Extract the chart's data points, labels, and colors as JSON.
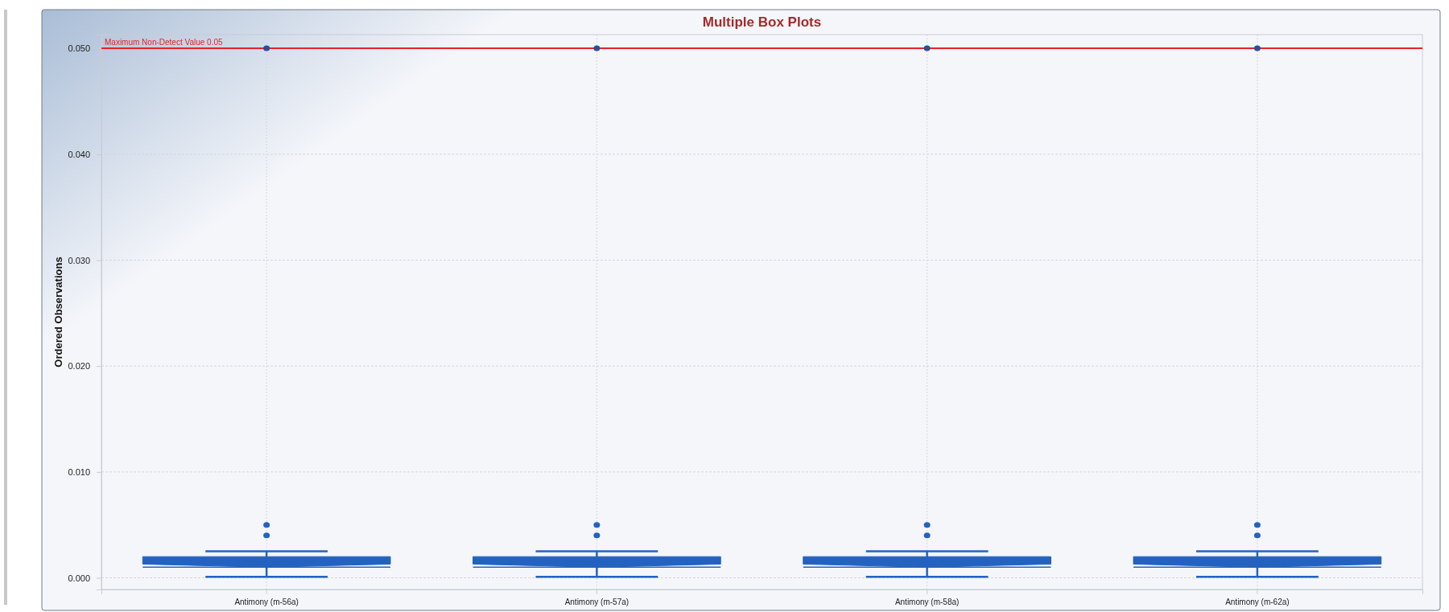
{
  "chart_data": {
    "type": "box",
    "title": "Multiple Box Plots",
    "ylabel": "Ordered Observations",
    "categories": [
      "Antimony (m-56a)",
      "Antimony (m-57a)",
      "Antimony (m-58a)",
      "Antimony (m-62a)"
    ],
    "color": "#2462c0",
    "boxes": [
      {
        "low": 0.0001,
        "q1": 0.001,
        "median": 0.001,
        "q3": 0.002,
        "high": 0.0025,
        "outliers": [
          0.004,
          0.005,
          0.05
        ]
      },
      {
        "low": 0.0001,
        "q1": 0.001,
        "median": 0.001,
        "q3": 0.002,
        "high": 0.0025,
        "outliers": [
          0.004,
          0.005,
          0.05
        ]
      },
      {
        "low": 0.0001,
        "q1": 0.001,
        "median": 0.001,
        "q3": 0.002,
        "high": 0.0025,
        "outliers": [
          0.004,
          0.005,
          0.05
        ]
      },
      {
        "low": 0.0001,
        "q1": 0.001,
        "median": 0.001,
        "q3": 0.002,
        "high": 0.0025,
        "outliers": [
          0.004,
          0.005,
          0.05
        ]
      }
    ],
    "ylim": [
      -0.0011,
      0.0513
    ],
    "yticks": [
      {
        "value": 0,
        "label": "0.000"
      },
      {
        "value": 0.01,
        "label": "0.010"
      },
      {
        "value": 0.02,
        "label": "0.020"
      },
      {
        "value": 0.03,
        "label": "0.030"
      },
      {
        "value": 0.04,
        "label": "0.040"
      },
      {
        "value": 0.05,
        "label": "0.050"
      }
    ],
    "grid": true,
    "ref_lines": [
      {
        "axis": "y",
        "value": 0.05,
        "label": "Maximum Non-Detect Value 0.05",
        "color": "#e8222a"
      }
    ]
  }
}
